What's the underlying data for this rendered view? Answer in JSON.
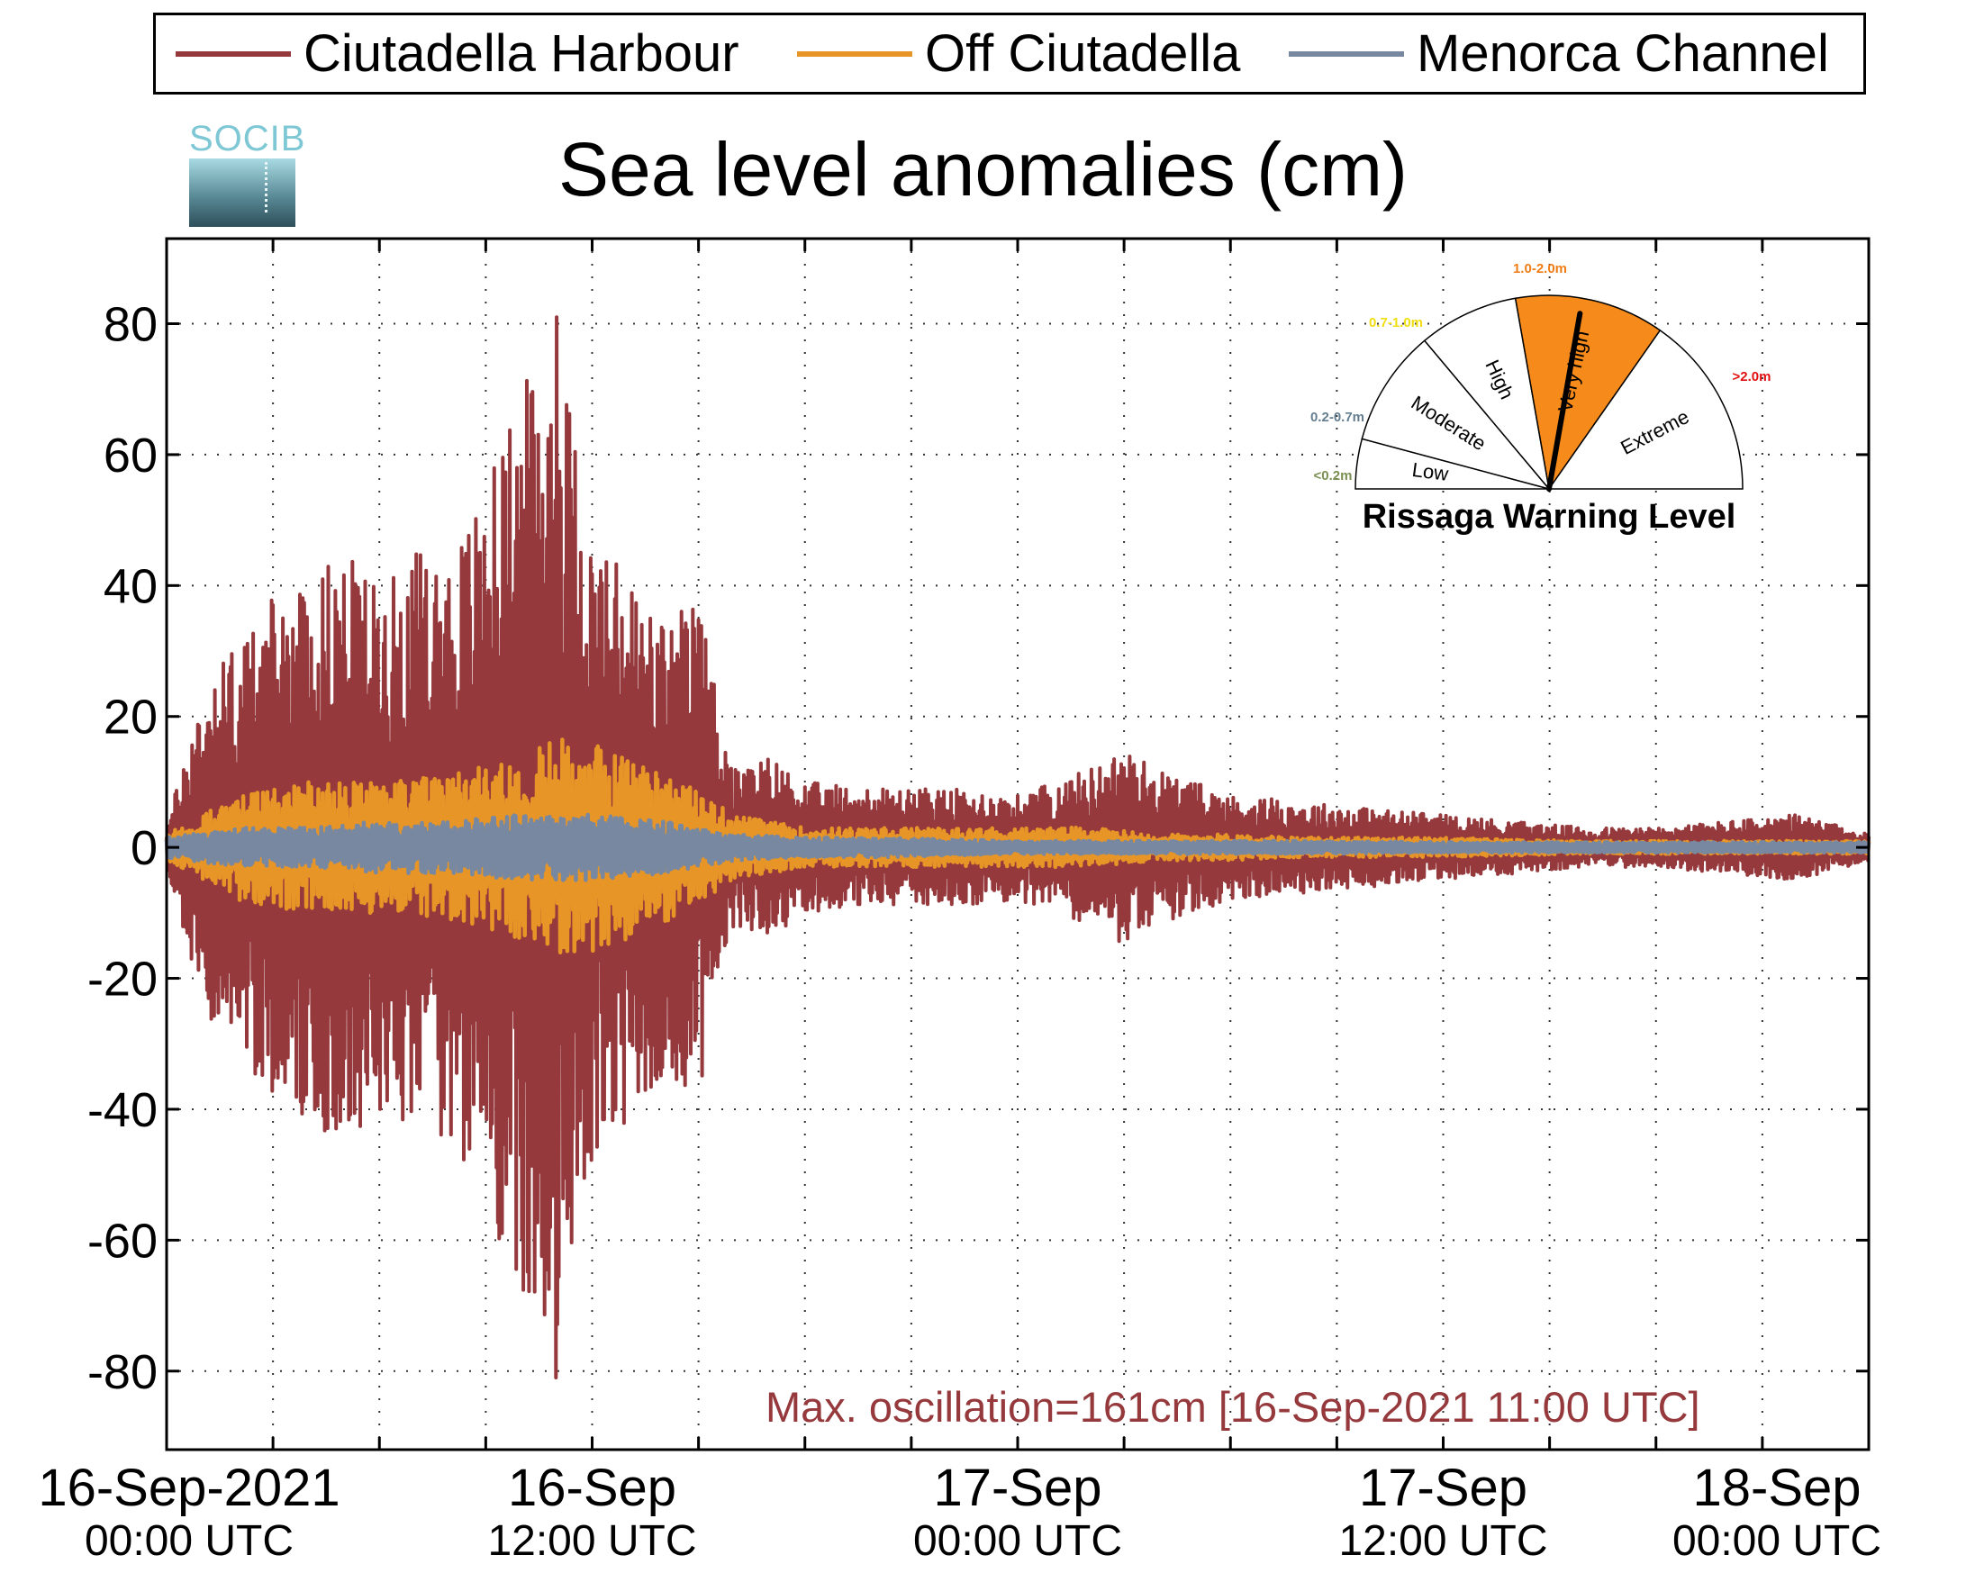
{
  "title": "Sea level anomalies (cm)",
  "logo_text": "SOCIB",
  "legend": [
    {
      "label": "Ciutadella Harbour",
      "color": "#96393c"
    },
    {
      "label": "Off Ciutadella",
      "color": "#e89528"
    },
    {
      "label": "Menorca Channel",
      "color": "#7788a0"
    }
  ],
  "annotation": "Max. oscillation=161cm [16-Sep-2021 11:00 UTC]",
  "gauge": {
    "title": "Rissaga Warning Level",
    "levels": [
      {
        "name": "Low",
        "range": "<0.2m",
        "color": "#7a8f52"
      },
      {
        "name": "Moderate",
        "range": "0.2-0.7m",
        "color": "#647e90"
      },
      {
        "name": "High",
        "range": "0.7-1.0m",
        "color": "#f0de10"
      },
      {
        "name": "Very high",
        "range": "1.0-2.0m",
        "color": "#f07d16"
      },
      {
        "name": "Extreme",
        "range": ">2.0m",
        "color": "#e01010"
      }
    ],
    "active_level": "Very high",
    "active_fill": "#f68a1a"
  },
  "chart_data": {
    "type": "line",
    "title": "Sea level anomalies (cm)",
    "xlabel": "",
    "ylabel": "",
    "x_range_hours": [
      0,
      48
    ],
    "ylim": [
      -92,
      93
    ],
    "yticks": [
      -80,
      -60,
      -40,
      -20,
      0,
      20,
      40,
      60,
      80
    ],
    "xticks": [
      {
        "date": "16-Sep-2021",
        "time": "00:00 UTC"
      },
      {
        "date": "16-Sep",
        "time": "12:00 UTC"
      },
      {
        "date": "17-Sep",
        "time": "00:00 UTC"
      },
      {
        "date": "17-Sep",
        "time": "12:00 UTC"
      },
      {
        "date": "18-Sep",
        "time": "00:00 UTC"
      }
    ],
    "grid": "dotted",
    "legend_position": "top",
    "series": [
      {
        "name": "Ciutadella Harbour",
        "color": "#96393c",
        "envelope_hours": [
          0,
          1,
          2,
          3,
          4,
          5,
          6,
          7,
          8,
          9,
          10,
          11,
          12,
          13,
          14,
          15,
          16,
          17,
          18,
          20,
          22,
          24,
          26,
          27,
          28,
          30,
          32,
          34,
          36,
          38,
          40,
          42,
          44,
          46,
          48
        ],
        "envelope_amplitude_cm": [
          3,
          25,
          32,
          38,
          42,
          45,
          40,
          45,
          45,
          55,
          70,
          80,
          48,
          42,
          35,
          38,
          12,
          14,
          10,
          9,
          9,
          8,
          12,
          15,
          12,
          8,
          7,
          6,
          5,
          4,
          3,
          3,
          4,
          5,
          2
        ],
        "max_point": {
          "hour": 11,
          "value": 81
        },
        "min_point": {
          "hour": 11,
          "value": -81
        }
      },
      {
        "name": "Off Ciutadella",
        "color": "#e89528",
        "envelope_hours": [
          0,
          2,
          4,
          6,
          8,
          10,
          11,
          12,
          14,
          16,
          18,
          20,
          22,
          24,
          26,
          28,
          30,
          32,
          36,
          40,
          44,
          48
        ],
        "envelope_amplitude_cm": [
          2,
          8,
          10,
          10,
          11,
          14,
          17,
          16,
          12,
          5,
          3,
          3,
          3,
          3,
          3,
          2,
          2,
          1.5,
          1.5,
          1,
          1,
          1
        ]
      },
      {
        "name": "Menorca Channel",
        "color": "#7788a0",
        "envelope_hours": [
          0,
          2,
          4,
          6,
          8,
          10,
          12,
          14,
          16,
          18,
          20,
          24,
          28,
          32,
          36,
          40,
          44,
          48
        ],
        "envelope_amplitude_cm": [
          1.5,
          3,
          3,
          4,
          4,
          5,
          5,
          4,
          2,
          1.5,
          1.5,
          1,
          1,
          1,
          0.8,
          0.8,
          0.8,
          0.8
        ]
      }
    ]
  }
}
